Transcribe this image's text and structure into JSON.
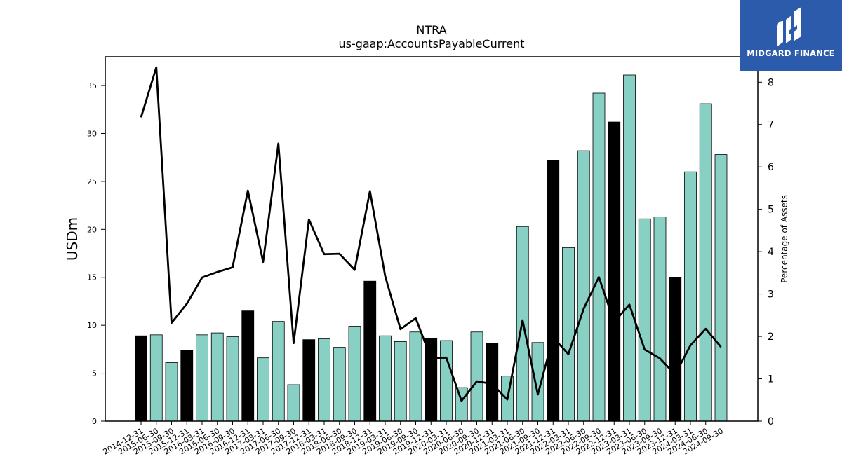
{
  "title": "NTRA",
  "subtitle": "us-gaap:AccountsPayableCurrent",
  "logo": {
    "text": "MIDGARD FINANCE",
    "bg_color": "#2d5bab"
  },
  "colors": {
    "bar_default": "#88d0c4",
    "bar_highlight": "#000000",
    "line": "#000000"
  },
  "chart_data": {
    "type": "bar",
    "categories": [
      "2014-12-31",
      "2015-06-30",
      "2015-09-30",
      "2015-12-31",
      "2016-03-31",
      "2016-06-30",
      "2016-09-30",
      "2016-12-31",
      "2017-03-31",
      "2017-06-30",
      "2017-09-30",
      "2017-12-31",
      "2018-03-31",
      "2018-06-30",
      "2018-09-30",
      "2018-12-31",
      "2019-03-31",
      "2019-06-30",
      "2019-09-30",
      "2019-12-31",
      "2020-03-31",
      "2020-06-30",
      "2020-09-30",
      "2020-12-31",
      "2021-03-31",
      "2021-06-30",
      "2021-09-30",
      "2021-12-31",
      "2022-03-31",
      "2022-06-30",
      "2022-09-30",
      "2022-12-31",
      "2023-03-31",
      "2023-06-30",
      "2023-09-30",
      "2023-12-31",
      "2024-03-31",
      "2024-06-30",
      "2024-09-30"
    ],
    "series": [
      {
        "values": [
          8.9,
          9.0,
          6.1,
          7.4,
          9.0,
          9.2,
          8.8,
          11.5,
          6.6,
          10.4,
          3.8,
          8.5,
          8.6,
          7.7,
          9.9,
          14.6,
          8.9,
          8.3,
          9.3,
          8.6,
          8.4,
          3.5,
          9.3,
          8.1,
          4.7,
          20.3,
          8.2,
          27.2,
          18.1,
          28.2,
          34.2,
          31.2,
          36.1,
          21.1,
          21.3,
          15.0,
          26.0,
          33.1,
          27.8
        ]
      },
      {
        "axis": "right",
        "values": [
          7.17,
          8.35,
          2.32,
          2.77,
          3.39,
          3.52,
          3.63,
          5.44,
          3.76,
          6.55,
          1.84,
          4.76,
          3.94,
          3.95,
          3.57,
          5.43,
          3.42,
          2.17,
          2.43,
          1.49,
          1.5,
          0.48,
          0.94,
          0.88,
          0.51,
          2.38,
          0.63,
          1.98,
          1.58,
          2.65,
          3.4,
          2.34,
          2.75,
          1.69,
          1.48,
          1.1,
          1.79,
          2.18,
          1.75
        ]
      }
    ],
    "highlight_categories": [
      "2014-12-31",
      "2015-12-31",
      "2016-12-31",
      "2017-12-31",
      "2018-12-31",
      "2019-12-31",
      "2020-12-31",
      "2021-12-31",
      "2022-12-31",
      "2023-12-31"
    ],
    "ylabel": "USDm",
    "y2label": "Percentage of Assets",
    "ylim": [
      0,
      38
    ],
    "y2lim": [
      0,
      8.6
    ],
    "yticks": [
      0,
      5,
      10,
      15,
      20,
      25,
      30,
      35
    ],
    "y2ticks": [
      0,
      1,
      2,
      3,
      4,
      5,
      6,
      7,
      8
    ],
    "grid": false,
    "legend": "none"
  }
}
